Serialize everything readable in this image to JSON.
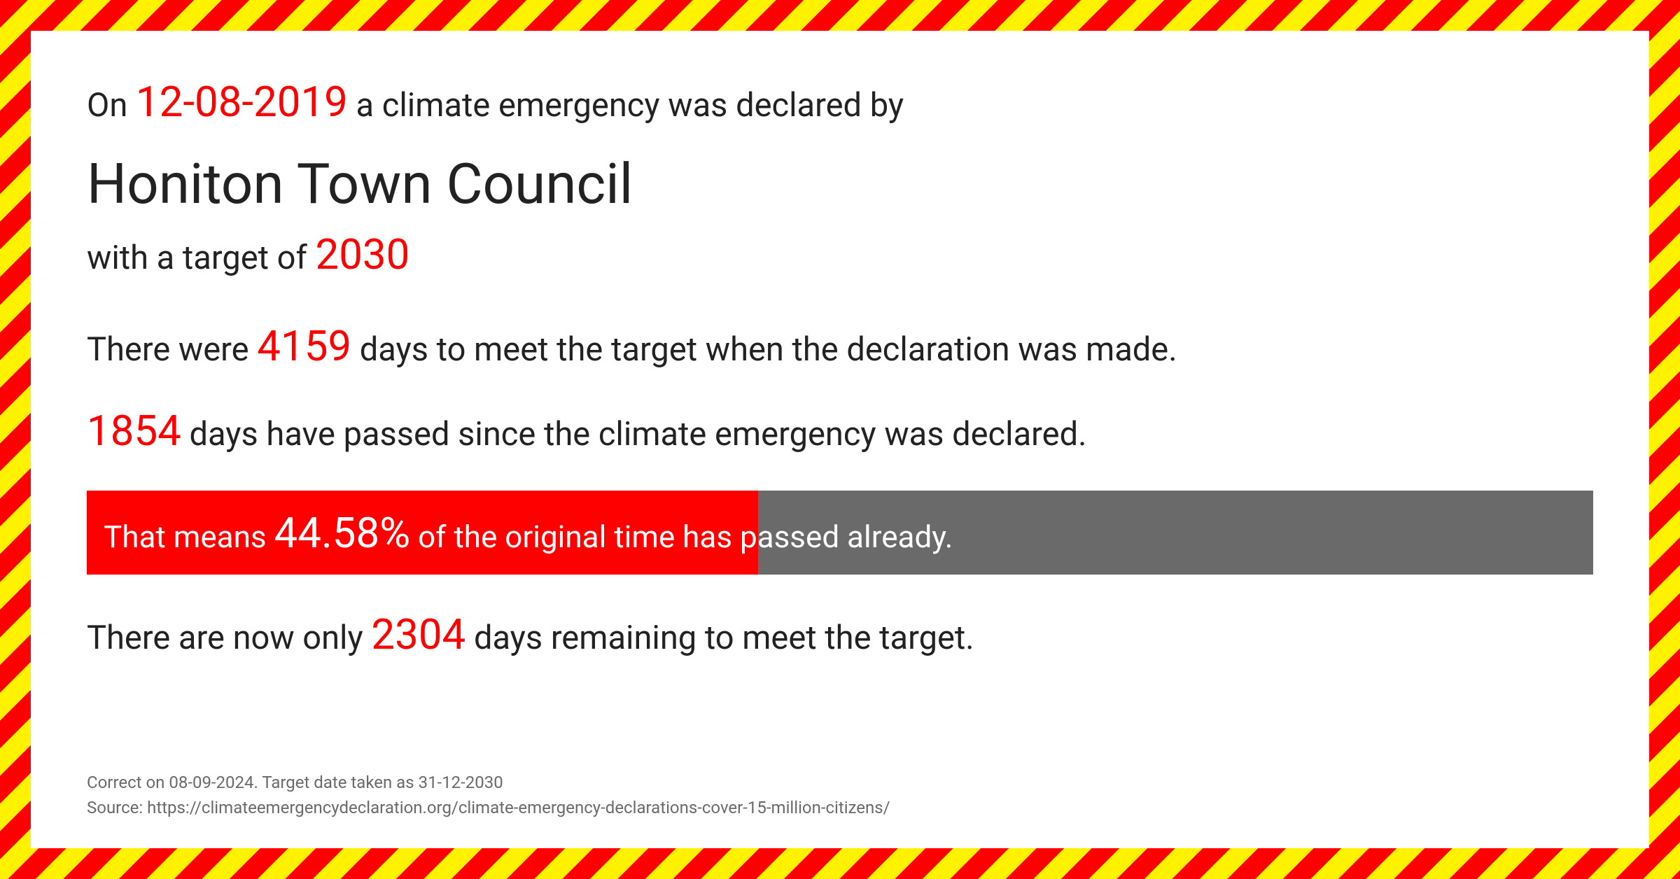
{
  "intro": {
    "prefix": "On ",
    "date": "12-08-2019",
    "suffix": " a climate emergency was declared by"
  },
  "council": "Honiton Town Council",
  "target": {
    "prefix": "with a target of  ",
    "year": "2030"
  },
  "days_total": {
    "prefix": "There were ",
    "value": "4159",
    "suffix": "  days to meet the target when the declaration was made."
  },
  "days_passed": {
    "value": "1854",
    "suffix": " days have passed since the climate emergency was declared."
  },
  "progress": {
    "prefix": "That means ",
    "percent": "44.58%",
    "suffix": " of the original time has passed already.",
    "fill_width": "44.58%",
    "fill_color": "#ff0000",
    "track_color": "#6a6a6a"
  },
  "days_remaining": {
    "prefix": "There are now only ",
    "value": "2304",
    "suffix": " days remaining to meet the target."
  },
  "footer": {
    "line1": "Correct on 08-09-2024. Target date taken as 31-12-2030",
    "line2": "Source: https://climateemergencydeclaration.org/climate-emergency-declarations-cover-15-million-citizens/"
  },
  "colors": {
    "accent": "#ff0000",
    "text": "#222222",
    "muted": "#6a6a6a",
    "hazard_red": "#ff0000",
    "hazard_yellow": "#fff200"
  }
}
